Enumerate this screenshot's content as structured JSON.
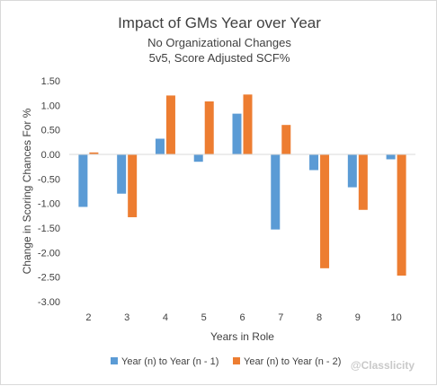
{
  "chart_data": {
    "type": "bar",
    "title": "Impact of GMs Year over Year",
    "subtitle_lines": [
      "No Organizational Changes",
      "5v5, Score Adjusted SCF%"
    ],
    "xlabel": "Years in Role",
    "ylabel": "Change in Scoring Chances For %",
    "categories": [
      "2",
      "3",
      "4",
      "5",
      "6",
      "7",
      "8",
      "9",
      "10"
    ],
    "ylim": [
      -3.0,
      1.5
    ],
    "yticks": [
      1.5,
      1.0,
      0.5,
      0.0,
      -0.5,
      -1.0,
      -1.5,
      -2.0,
      -2.5,
      -3.0
    ],
    "ytick_labels": [
      "1.50",
      "1.00",
      "0.50",
      "0.00",
      "-0.50",
      "-1.00",
      "-1.50",
      "-2.00",
      "-2.50",
      "-3.00"
    ],
    "grid": false,
    "legend_position": "bottom",
    "series": [
      {
        "name": "Year (n) to Year (n - 1)",
        "color": "#5b9bd5",
        "values": [
          -1.07,
          -0.8,
          0.32,
          -0.15,
          0.83,
          -1.53,
          -0.32,
          -0.67,
          -0.1
        ]
      },
      {
        "name": "Year (n) to Year (n - 2)",
        "color": "#ed7d31",
        "values": [
          0.04,
          -1.28,
          1.2,
          1.08,
          1.22,
          0.6,
          -2.32,
          -1.13,
          -2.47
        ]
      }
    ]
  },
  "watermark": "@Classlicity"
}
